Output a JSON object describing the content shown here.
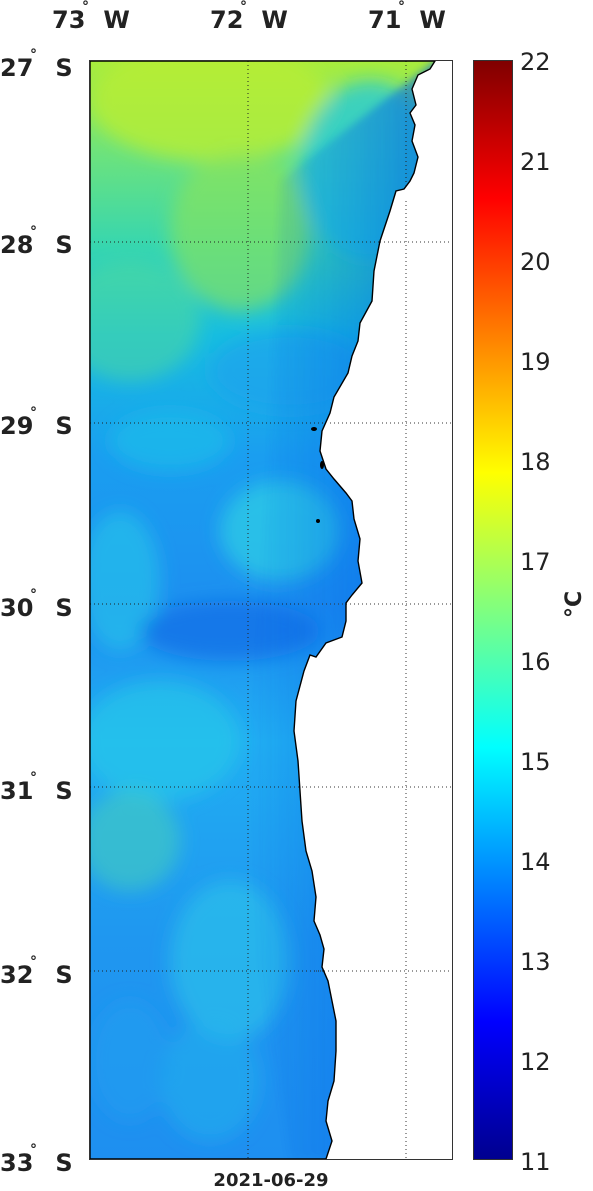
{
  "map": {
    "lon_labels": [
      {
        "deg": "73",
        "dir": "W"
      },
      {
        "deg": "72",
        "dir": "W"
      },
      {
        "deg": "71",
        "dir": "W"
      }
    ],
    "lat_labels": [
      {
        "deg": "27",
        "dir": "S"
      },
      {
        "deg": "28",
        "dir": "S"
      },
      {
        "deg": "29",
        "dir": "S"
      },
      {
        "deg": "30",
        "dir": "S"
      },
      {
        "deg": "31",
        "dir": "S"
      },
      {
        "deg": "32",
        "dir": "S"
      },
      {
        "deg": "33",
        "dir": "S"
      }
    ],
    "lon_range": [
      73,
      70.7
    ],
    "lat_range": [
      27,
      33
    ],
    "grid": "dotted",
    "date": "2021-06-29",
    "land_color": "#ffffff"
  },
  "colorbar": {
    "ticks": [
      "22",
      "21",
      "20",
      "19",
      "18",
      "17",
      "16",
      "15",
      "14",
      "13",
      "12",
      "11"
    ],
    "unit": "°C",
    "colormap": "jet",
    "range": [
      11,
      22
    ]
  },
  "chart_data": {
    "type": "heatmap",
    "variable": "sea surface temperature",
    "unit": "°C",
    "date": "2021-06-29",
    "vmin": 11,
    "vmax": 22,
    "x_ticks": [
      "73° W",
      "72° W",
      "71° W"
    ],
    "y_ticks": [
      "27° S",
      "28° S",
      "29° S",
      "30° S",
      "31° S",
      "32° S",
      "33° S"
    ],
    "approx_values_by_lat": [
      {
        "lat": 27.0,
        "offshore": 16.6,
        "near_coast": 15.4
      },
      {
        "lat": 28.0,
        "offshore": 16.0,
        "near_coast": 14.9
      },
      {
        "lat": 29.0,
        "offshore": 14.6,
        "near_coast": 14.0
      },
      {
        "lat": 30.0,
        "offshore": 14.7,
        "near_coast": 13.7
      },
      {
        "lat": 31.0,
        "offshore": 15.2,
        "near_coast": 13.8
      },
      {
        "lat": 32.0,
        "offshore": 14.6,
        "near_coast": 13.8
      },
      {
        "lat": 33.0,
        "offshore": 14.3,
        "near_coast": 13.9
      }
    ]
  }
}
